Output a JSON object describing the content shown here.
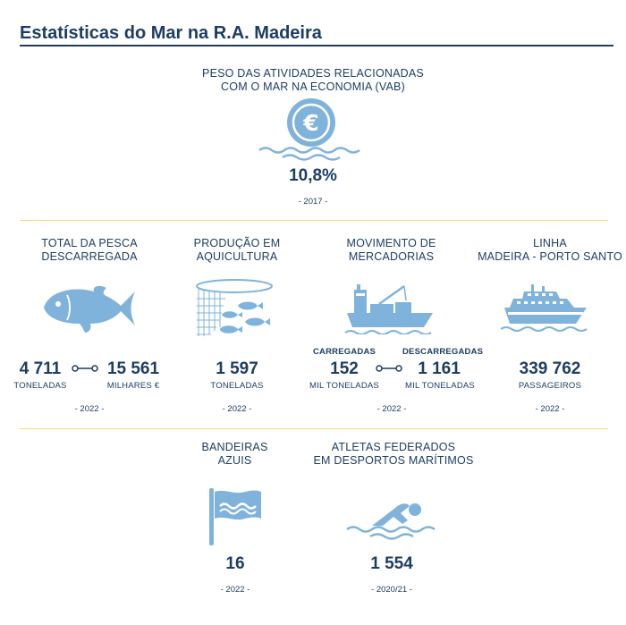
{
  "title": "Estatísticas do Mar na R.A. Madeira",
  "colors": {
    "primary": "#1d3d63",
    "icon": "#7fb3dc",
    "separator": "#f3dd7e"
  },
  "vab": {
    "heading_line1": "PESO DAS ATIVIDADES RELACIONADAS",
    "heading_line2": "COM O MAR NA ECONOMIA (VAB)",
    "icon": "euro-coin-waves-icon",
    "value": "10,8%",
    "year": "- 2017 -"
  },
  "pesca": {
    "heading_line1": "TOTAL DA PESCA",
    "heading_line2": "DESCARREGADA",
    "icon": "fish-icon",
    "value1": "4 711",
    "unit1": "TONELADAS",
    "value2": "15 561",
    "unit2": "MILHARES €",
    "year": "- 2022 -"
  },
  "aquicultura": {
    "heading_line1": "PRODUÇÃO EM",
    "heading_line2": "AQUICULTURA",
    "icon": "fish-net-icon",
    "value": "1 597",
    "unit": "TONELADAS",
    "year": "- 2022 -"
  },
  "mercadorias": {
    "heading_line1": "MOVIMENTO DE",
    "heading_line2": "MERCADORIAS",
    "icon": "cargo-ship-icon",
    "label1": "CARREGADAS",
    "value1": "152",
    "unit1": "MIL TONELADAS",
    "label2": "DESCARREGADAS",
    "value2": "1 161",
    "unit2": "MIL TONELADAS",
    "year": "- 2022 -"
  },
  "linha": {
    "heading_line1": "LINHA",
    "heading_line2": "MADEIRA - PORTO SANTO",
    "icon": "passenger-ferry-icon",
    "value": "339 762",
    "unit": "PASSAGEIROS",
    "year": "- 2022 -"
  },
  "bandeiras": {
    "heading_line1": "BANDEIRAS",
    "heading_line2": "AZUIS",
    "icon": "blue-flag-icon",
    "value": "16",
    "year": "- 2022 -"
  },
  "atletas": {
    "heading_line1": "ATLETAS FEDERADOS",
    "heading_line2": "EM DESPORTOS MARÍTIMOS",
    "icon": "swimmer-icon",
    "value": "1 554",
    "year": "- 2020/21 -"
  }
}
